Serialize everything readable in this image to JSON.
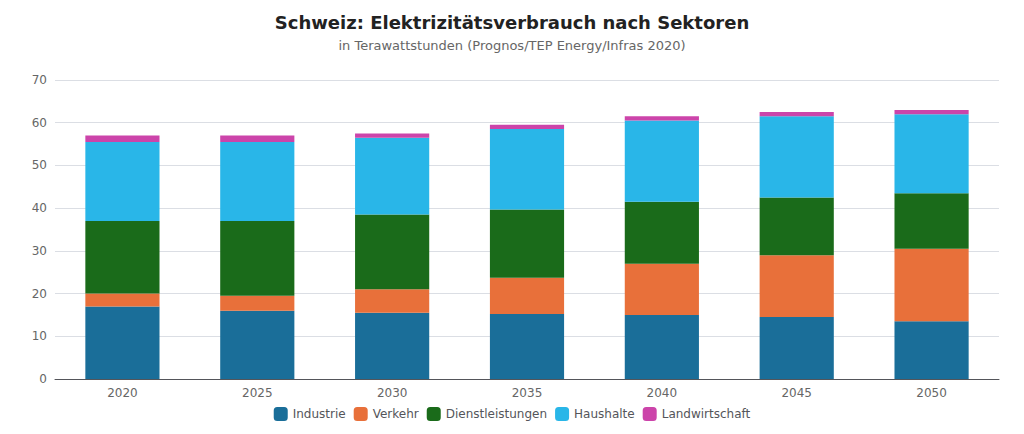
{
  "chart_data": {
    "type": "bar",
    "title": "Schweiz: Elektrizitätsverbrauch nach Sektoren",
    "subtitle": "in Terawattstunden (Prognos/TEP Energy/Infras 2020)",
    "categories": [
      "2020",
      "2025",
      "2030",
      "2035",
      "2040",
      "2045",
      "2050"
    ],
    "series": [
      {
        "name": "Industrie",
        "color": "#1a6e99",
        "values": [
          17.0,
          16.0,
          15.5,
          15.2,
          15.0,
          14.5,
          13.5
        ]
      },
      {
        "name": "Verkehr",
        "color": "#e8703a",
        "values": [
          3.0,
          3.5,
          5.5,
          8.5,
          12.0,
          14.5,
          17.0
        ]
      },
      {
        "name": "Dienstleistungen",
        "color": "#1a6b1a",
        "values": [
          17.0,
          17.5,
          17.5,
          16.0,
          14.5,
          13.5,
          13.0
        ]
      },
      {
        "name": "Haushalte",
        "color": "#29b6e8",
        "values": [
          18.5,
          18.5,
          18.0,
          18.8,
          19.0,
          19.0,
          18.5
        ]
      },
      {
        "name": "Landwirtschaft",
        "color": "#cc44aa",
        "values": [
          1.5,
          1.5,
          1.0,
          1.0,
          1.0,
          1.0,
          1.0
        ]
      }
    ],
    "ylim": [
      0,
      70
    ],
    "yticks": [
      0,
      10,
      20,
      30,
      40,
      50,
      60,
      70
    ],
    "grid": true,
    "stacked": true,
    "legend": "bottom"
  }
}
